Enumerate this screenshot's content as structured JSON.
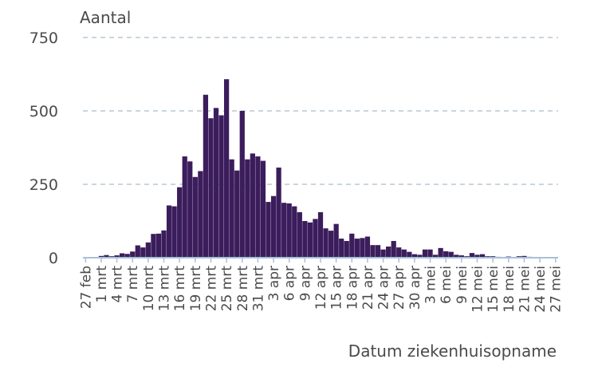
{
  "chart_data": {
    "type": "bar",
    "ylabel": "Aantal",
    "xlabel": "Datum ziekenhuisopname",
    "ylim": [
      0,
      750
    ],
    "yticks": [
      0,
      250,
      500,
      750
    ],
    "grid": true,
    "x_tick_labels": [
      "27 feb",
      "1 mrt",
      "4 mrt",
      "7 mrt",
      "10 mrt",
      "13 mrt",
      "16 mrt",
      "19 mrt",
      "22 mrt",
      "25 mrt",
      "28 mrt",
      "31 mrt",
      "3 apr",
      "6 apr",
      "9 apr",
      "12 apr",
      "15 apr",
      "18 apr",
      "21 apr",
      "24 apr",
      "27 apr",
      "30 apr",
      "3 mei",
      "6 mei",
      "9 mei",
      "12 mei",
      "15 mei",
      "18 mei",
      "21 mei",
      "24 mei",
      "27 mei"
    ],
    "values": [
      0,
      1,
      2,
      6,
      9,
      5,
      8,
      15,
      13,
      21,
      42,
      35,
      52,
      81,
      82,
      93,
      178,
      175,
      240,
      345,
      328,
      275,
      295,
      555,
      475,
      510,
      485,
      608,
      335,
      297,
      500,
      335,
      355,
      345,
      330,
      190,
      210,
      307,
      187,
      185,
      175,
      155,
      125,
      120,
      132,
      155,
      100,
      92,
      115,
      65,
      57,
      82,
      65,
      67,
      72,
      43,
      43,
      28,
      38,
      57,
      35,
      28,
      20,
      12,
      10,
      28,
      28,
      10,
      33,
      22,
      20,
      10,
      8,
      5,
      16,
      10,
      12,
      5,
      5,
      3,
      2,
      4,
      1,
      5,
      6,
      3,
      2,
      2,
      1,
      1,
      1
    ],
    "highlight_color": "#e8c9a0",
    "highlight_from_index": 82
  },
  "colors": {
    "bar": "#3b1d5c",
    "grid": "#b8c8d4",
    "axis": "#a8c0d8",
    "text": "#4a4a4a"
  }
}
